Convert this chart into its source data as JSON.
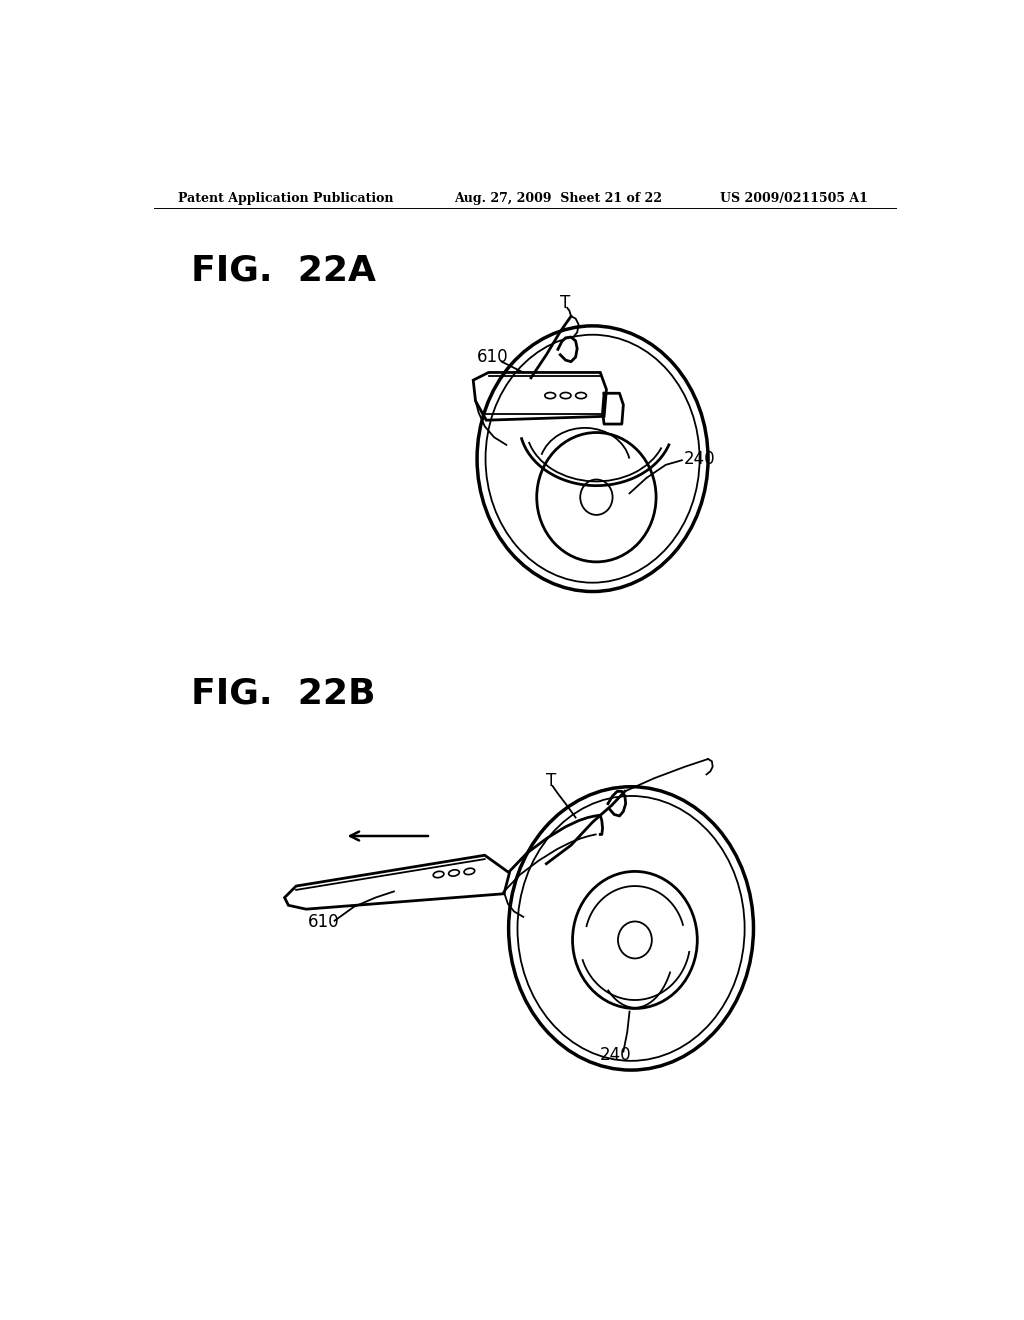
{
  "header_left": "Patent Application Publication",
  "header_mid": "Aug. 27, 2009  Sheet 21 of 22",
  "header_right": "US 2009/0211505 A1",
  "fig_a_label": "FIG.  22A",
  "fig_b_label": "FIG.  22B",
  "label_610a": "610",
  "label_240a": "240",
  "label_T_a": "T",
  "label_610b": "610",
  "label_240b": "240",
  "label_T_b": "T",
  "bg_color": "#ffffff",
  "line_color": "#000000",
  "header_fontsize": 9,
  "fig_label_fontsize": 26,
  "annotation_fontsize": 12
}
